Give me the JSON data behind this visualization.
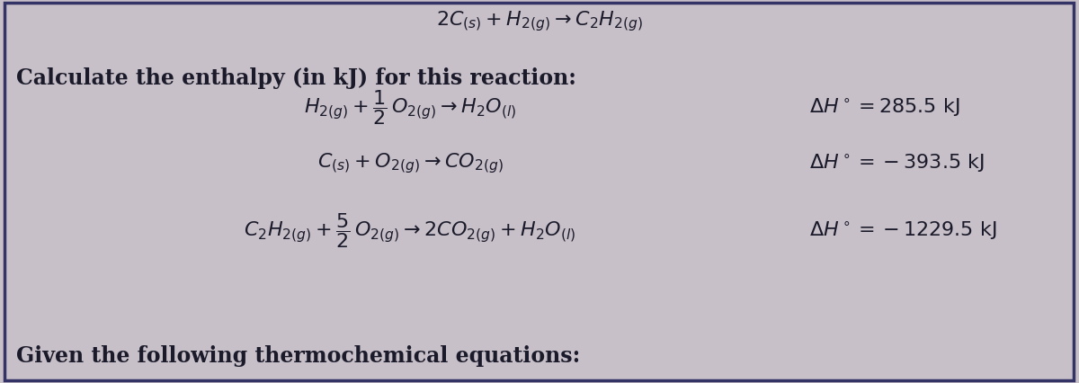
{
  "background_color": "#c8c0c8",
  "border_color": "#333366",
  "font_color": "#1a1a2a",
  "figsize": [
    12.0,
    4.27
  ],
  "dpi": 100,
  "title_text": "Given the following thermochemical equations:",
  "footer_text": "Calculate the enthalpy (in kJ) for this reaction:",
  "eq1_left": "$C_2H_{2(g)} + \\dfrac{5}{2}\\, O_{2(g)} \\rightarrow 2CO_{2(g)} + H_2O_{(l)}$",
  "dh1": "$\\Delta H^\\circ = -1229.5\\,\\mathrm{kJ}$",
  "eq2_left": "$C_{(s)} + O_{2(g)} \\rightarrow CO_{2(g)}$",
  "dh2": "$\\Delta H^\\circ = -393.5\\,\\mathrm{kJ}$",
  "eq3_left": "$H_{2(g)} + \\dfrac{1}{2}\\, O_{2(g)} \\rightarrow H_2O_{(l)}$",
  "dh3": "$\\Delta H^\\circ = 285.5\\,\\mathrm{kJ}$",
  "final_eq": "$2C_{(s)} + H_{2(g)} \\rightarrow C_2H_{2(g)}$"
}
